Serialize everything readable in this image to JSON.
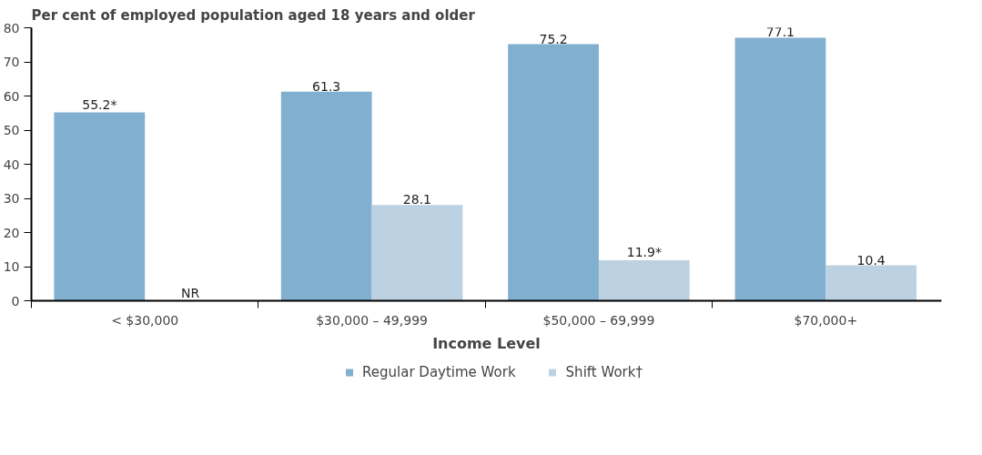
{
  "chart_data": {
    "type": "bar",
    "ylabel": "Per cent of employed population aged 18 years and older",
    "xlabel": "Income Level",
    "categories": [
      "< $30,000",
      "$30,000 – 49,999",
      "$50,000 – 69,999",
      "$70,000+"
    ],
    "series": [
      {
        "name": "Regular Daytime Work",
        "color": "#80afcf",
        "values": [
          55.2,
          61.3,
          75.2,
          77.1
        ],
        "value_labels": [
          "55.2*",
          "61.3",
          "75.2",
          "77.1"
        ]
      },
      {
        "name": "Shift Work†",
        "color": "#bcd1e2",
        "values": [
          null,
          28.1,
          11.9,
          10.4
        ],
        "value_labels": [
          "NR",
          "28.1",
          "11.9*",
          "10.4"
        ]
      }
    ],
    "ylim": [
      0,
      80
    ],
    "yticks": [
      0,
      10,
      20,
      30,
      40,
      50,
      60,
      70,
      80
    ],
    "grid": false,
    "legend": "bottom"
  }
}
